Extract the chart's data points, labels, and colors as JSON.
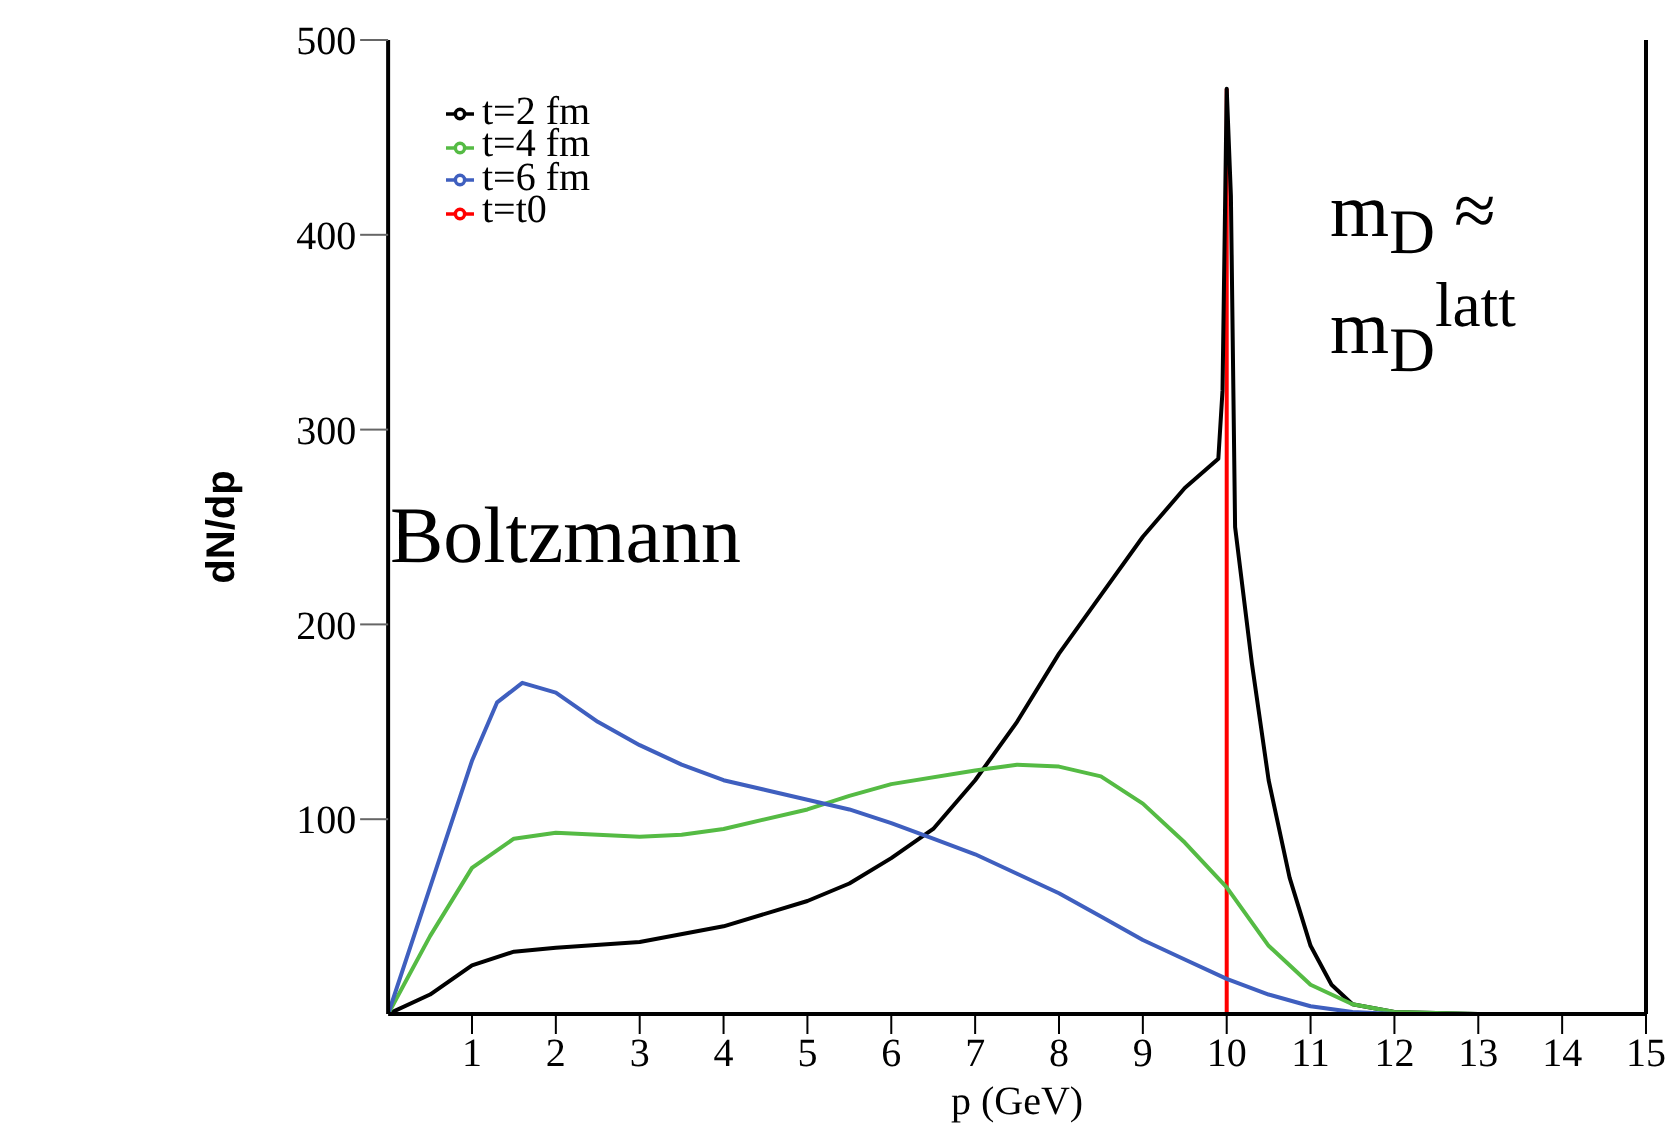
{
  "chart_data": {
    "type": "line",
    "xlabel": "p (GeV)",
    "ylabel": "dN/dp",
    "xlim": [
      0,
      15
    ],
    "ylim": [
      0,
      500
    ],
    "xticks": [
      1,
      2,
      3,
      4,
      5,
      6,
      7,
      8,
      9,
      10,
      11,
      12,
      13,
      14,
      15
    ],
    "yticks": [
      100,
      200,
      300,
      400,
      500
    ],
    "legend": "top left",
    "grid": false,
    "marker": "none",
    "line_style": "solid",
    "annotations": [
      "Boltzmann",
      "m$_{D}$ ≈ m$_{D}$$^{latt}$"
    ],
    "series": [
      {
        "name": "t=t0",
        "color": "#ff0000",
        "x": [
          10,
          10
        ],
        "values": [
          0,
          475
        ]
      },
      {
        "name": "t=2 fm",
        "color": "#000000",
        "x": [
          0,
          0.5,
          1,
          1.5,
          2,
          3,
          4,
          5,
          5.5,
          6,
          6.5,
          7,
          7.5,
          8,
          8.5,
          9,
          9.5,
          9.9,
          9.95,
          10,
          10.05,
          10.1,
          10.3,
          10.5,
          10.75,
          11,
          11.25,
          11.5,
          12,
          13,
          15
        ],
        "values": [
          0,
          10,
          25,
          32,
          34,
          37,
          45,
          58,
          67,
          80,
          95,
          120,
          150,
          185,
          215,
          245,
          270,
          285,
          320,
          475,
          420,
          250,
          180,
          120,
          70,
          35,
          15,
          5,
          1,
          0,
          0
        ]
      },
      {
        "name": "t=4 fm",
        "color": "#55bb44",
        "x": [
          0,
          0.5,
          1,
          1.5,
          2,
          3,
          3.5,
          4,
          5,
          5.5,
          6,
          7,
          7.5,
          8,
          8.5,
          9,
          9.5,
          10,
          10.5,
          11,
          11.5,
          12,
          13,
          15
        ],
        "values": [
          0,
          40,
          75,
          90,
          93,
          91,
          92,
          95,
          105,
          112,
          118,
          125,
          128,
          127,
          122,
          108,
          88,
          65,
          35,
          15,
          5,
          1,
          0,
          0
        ]
      },
      {
        "name": "t=6 fm",
        "color": "#3f5fbf",
        "x": [
          0,
          0.5,
          1,
          1.3,
          1.6,
          2,
          2.5,
          3,
          3.5,
          4,
          4.5,
          5,
          5.5,
          6,
          6.5,
          7,
          7.5,
          8,
          8.5,
          9,
          9.5,
          10,
          10.5,
          11,
          11.5,
          12,
          15
        ],
        "values": [
          0,
          65,
          130,
          160,
          170,
          165,
          150,
          138,
          128,
          120,
          115,
          110,
          105,
          98,
          90,
          82,
          72,
          62,
          50,
          38,
          28,
          18,
          10,
          4,
          1,
          0,
          0
        ]
      }
    ]
  }
}
